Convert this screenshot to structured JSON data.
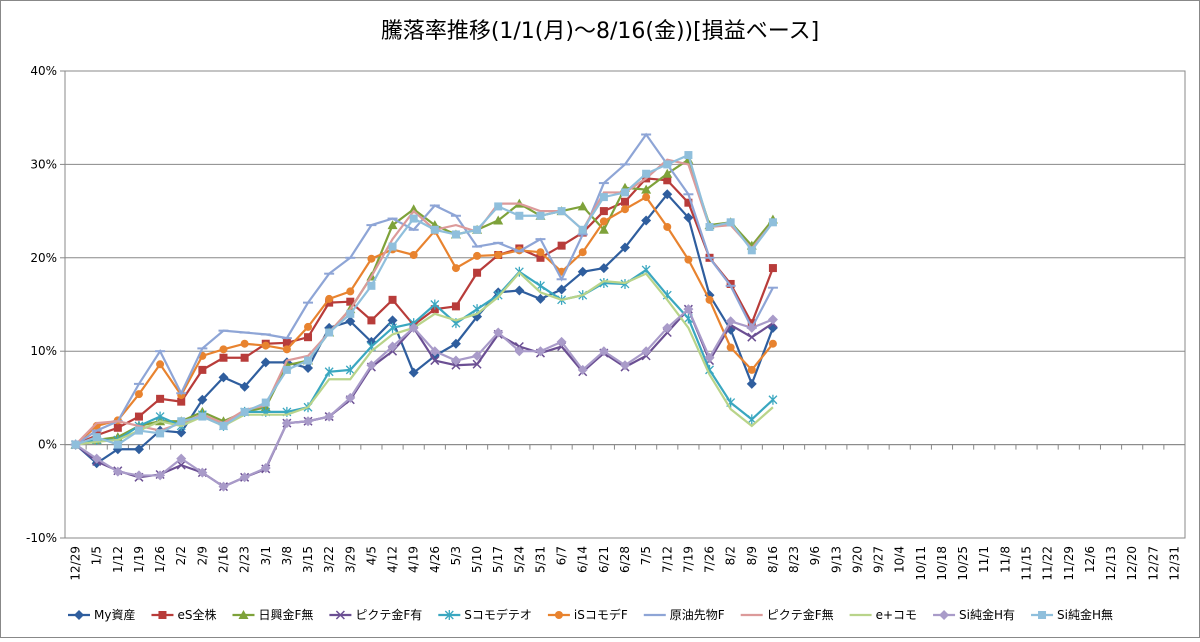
{
  "chart_data": {
    "type": "line",
    "title": "騰落率推移(1/1(月)～8/16(金))[損益ベース]",
    "categories": [
      "12/29",
      "1/5",
      "1/12",
      "1/19",
      "1/26",
      "2/2",
      "2/9",
      "2/16",
      "2/23",
      "3/1",
      "3/8",
      "3/15",
      "3/22",
      "3/29",
      "4/5",
      "4/12",
      "4/19",
      "4/26",
      "5/3",
      "5/10",
      "5/17",
      "5/24",
      "5/31",
      "6/7",
      "6/14",
      "6/21",
      "6/28",
      "7/5",
      "7/12",
      "7/19",
      "7/26",
      "8/2",
      "8/9",
      "8/16",
      "8/23",
      "9/6",
      "9/13",
      "9/20",
      "9/27",
      "10/4",
      "10/11",
      "10/18",
      "10/25",
      "11/1",
      "11/8",
      "11/15",
      "11/22",
      "11/29",
      "12/6",
      "12/13",
      "12/20",
      "12/27",
      "12/31"
    ],
    "ylim": [
      -10,
      40
    ],
    "yticks": [
      {
        "value": -10,
        "label": "-10%"
      },
      {
        "value": 0,
        "label": "0%"
      },
      {
        "value": 10,
        "label": "10%"
      },
      {
        "value": 20,
        "label": "20%"
      },
      {
        "value": 30,
        "label": "30%"
      },
      {
        "value": 40,
        "label": "40%"
      }
    ],
    "grid": true,
    "legend": "bottom",
    "series": [
      {
        "name": "My資産",
        "color": "#2f5e9e",
        "marker": "diamond",
        "values": [
          0,
          -2.0,
          -0.5,
          -0.5,
          1.5,
          1.3,
          4.8,
          7.2,
          6.2,
          8.8,
          8.8,
          8.2,
          12.5,
          13.2,
          11.0,
          13.3,
          7.7,
          9.5,
          10.8,
          13.7,
          16.3,
          16.5,
          15.6,
          16.6,
          18.5,
          18.9,
          21.1,
          24.0,
          26.8,
          24.3,
          16.0,
          12.3,
          6.5,
          12.5,
          null,
          null,
          null,
          null,
          null,
          null,
          null,
          null,
          null,
          null,
          null,
          null,
          null,
          null,
          null,
          null,
          null,
          null,
          null
        ]
      },
      {
        "name": "eS全株",
        "color": "#b83c3a",
        "marker": "square",
        "values": [
          0,
          1.0,
          1.8,
          3.0,
          4.9,
          4.6,
          8.0,
          9.3,
          9.3,
          10.8,
          10.9,
          11.5,
          15.2,
          15.3,
          13.3,
          15.5,
          12.8,
          14.5,
          14.8,
          18.4,
          20.3,
          21.0,
          20.0,
          21.3,
          22.7,
          25.0,
          26.0,
          28.5,
          28.3,
          25.9,
          20.0,
          17.2,
          13.0,
          18.9,
          null,
          null,
          null,
          null,
          null,
          null,
          null,
          null,
          null,
          null,
          null,
          null,
          null,
          null,
          null,
          null,
          null,
          null,
          null
        ]
      },
      {
        "name": "日興金F無",
        "color": "#7ea23a",
        "marker": "triangle",
        "values": [
          0,
          0.5,
          0.8,
          2.0,
          2.5,
          2.5,
          3.5,
          2.5,
          3.5,
          4.0,
          8.5,
          9.0,
          12.0,
          14.5,
          18.0,
          23.5,
          25.2,
          23.5,
          22.5,
          23.0,
          24.0,
          25.8,
          24.5,
          25.0,
          25.5,
          23.0,
          27.5,
          27.3,
          29.0,
          30.5,
          23.5,
          23.8,
          21.3,
          24.1,
          null,
          null,
          null,
          null,
          null,
          null,
          null,
          null,
          null,
          null,
          null,
          null,
          null,
          null,
          null,
          null,
          null,
          null,
          null
        ]
      },
      {
        "name": "ピクテ金F有",
        "color": "#6b4f93",
        "marker": "x",
        "values": [
          0,
          -1.8,
          -2.8,
          -3.5,
          -3.2,
          -2.2,
          -3.0,
          -4.5,
          -3.5,
          -2.6,
          2.3,
          2.5,
          3.0,
          4.8,
          8.3,
          10.0,
          12.5,
          9.0,
          8.5,
          8.6,
          11.8,
          10.5,
          9.8,
          10.5,
          7.8,
          9.8,
          8.3,
          9.5,
          12.0,
          14.5,
          9.0,
          12.8,
          11.5,
          13.0,
          null,
          null,
          null,
          null,
          null,
          null,
          null,
          null,
          null,
          null,
          null,
          null,
          null,
          null,
          null,
          null,
          null,
          null,
          null
        ]
      },
      {
        "name": "Sコモデテオ",
        "color": "#3aa7c0",
        "marker": "asterisk",
        "values": [
          0,
          0.5,
          0.5,
          2.0,
          3.0,
          2.0,
          3.2,
          2.0,
          3.5,
          3.5,
          3.5,
          4.0,
          7.8,
          8.0,
          10.5,
          12.5,
          13.0,
          15.0,
          13.0,
          14.5,
          16.0,
          18.5,
          17.0,
          15.5,
          16.0,
          17.3,
          17.2,
          18.7,
          16.0,
          13.5,
          8.0,
          4.5,
          2.7,
          4.8,
          null,
          null,
          null,
          null,
          null,
          null,
          null,
          null,
          null,
          null,
          null,
          null,
          null,
          null,
          null,
          null,
          null,
          null,
          null
        ]
      },
      {
        "name": "iSコモデF",
        "color": "#e8832f",
        "marker": "circle",
        "values": [
          0,
          2.0,
          2.6,
          5.4,
          8.6,
          5.3,
          9.5,
          10.2,
          10.8,
          10.6,
          10.2,
          12.6,
          15.6,
          16.4,
          19.9,
          20.9,
          20.3,
          22.9,
          18.9,
          20.2,
          20.3,
          20.8,
          20.6,
          18.5,
          20.6,
          23.9,
          25.2,
          26.5,
          23.3,
          19.8,
          15.5,
          10.4,
          8.0,
          10.8,
          null,
          null,
          null,
          null,
          null,
          null,
          null,
          null,
          null,
          null,
          null,
          null,
          null,
          null,
          null,
          null,
          null,
          null,
          null
        ]
      },
      {
        "name": "原油先物F",
        "color": "#8ea5d6",
        "marker": "dash",
        "values": [
          0,
          1.5,
          2.5,
          6.5,
          10.0,
          5.5,
          10.3,
          12.2,
          12.0,
          11.8,
          11.4,
          15.2,
          18.3,
          20.0,
          23.5,
          24.2,
          23.0,
          25.6,
          24.5,
          21.2,
          21.6,
          20.7,
          22.0,
          17.7,
          22.5,
          28.0,
          30.0,
          33.2,
          30.0,
          26.8,
          20.0,
          17.0,
          12.5,
          16.8,
          null,
          null,
          null,
          null,
          null,
          null,
          null,
          null,
          null,
          null,
          null,
          null,
          null,
          null,
          null,
          null,
          null,
          null,
          null
        ]
      },
      {
        "name": "ピクテ金F無",
        "color": "#dc9a9a",
        "marker": "none",
        "values": [
          0,
          2.3,
          2.5,
          2.0,
          1.5,
          2.3,
          3.2,
          2.3,
          3.7,
          4.2,
          9.0,
          9.5,
          12.0,
          14.5,
          18.0,
          22.0,
          25.0,
          23.0,
          23.5,
          22.8,
          25.8,
          25.8,
          25.0,
          25.0,
          23.0,
          27.0,
          27.0,
          28.5,
          30.5,
          30.0,
          23.3,
          23.5,
          21.0,
          23.8,
          null,
          null,
          null,
          null,
          null,
          null,
          null,
          null,
          null,
          null,
          null,
          null,
          null,
          null,
          null,
          null,
          null,
          null,
          null
        ]
      },
      {
        "name": "e+コモ",
        "color": "#b9d48a",
        "marker": "none",
        "values": [
          0,
          0.3,
          0.5,
          1.5,
          2.5,
          2.0,
          3.0,
          2.0,
          3.2,
          3.2,
          3.2,
          4.0,
          7.0,
          7.0,
          10.0,
          11.8,
          12.5,
          14.0,
          13.3,
          14.0,
          15.8,
          18.4,
          16.3,
          15.5,
          16.0,
          17.5,
          17.3,
          18.3,
          15.5,
          12.5,
          7.5,
          3.8,
          2.0,
          4.0,
          null,
          null,
          null,
          null,
          null,
          null,
          null,
          null,
          null,
          null,
          null,
          null,
          null,
          null,
          null,
          null,
          null,
          null,
          null
        ]
      },
      {
        "name": "Si純金H有",
        "color": "#a99bc9",
        "marker": "diamond",
        "values": [
          0,
          -1.5,
          -2.9,
          -3.3,
          -3.3,
          -1.5,
          -3.0,
          -4.5,
          -3.5,
          -2.5,
          2.3,
          2.5,
          3.0,
          5.0,
          8.5,
          10.5,
          12.5,
          10.0,
          9.0,
          9.5,
          12.0,
          10.0,
          10.0,
          11.0,
          8.0,
          10.0,
          8.5,
          10.0,
          12.5,
          14.5,
          9.3,
          13.2,
          12.5,
          13.4,
          null,
          null,
          null,
          null,
          null,
          null,
          null,
          null,
          null,
          null,
          null,
          null,
          null,
          null,
          null,
          null,
          null,
          null,
          null
        ]
      },
      {
        "name": "Si純金H無",
        "color": "#8fbfdc",
        "marker": "square",
        "values": [
          0,
          0.8,
          0,
          1.5,
          1.2,
          2.5,
          3.0,
          2.0,
          3.5,
          4.5,
          8.0,
          9.0,
          12.0,
          14.0,
          17.0,
          21.2,
          24.2,
          23.0,
          22.5,
          23.0,
          25.5,
          24.5,
          24.5,
          25.0,
          23.0,
          26.5,
          27.0,
          29.0,
          30.0,
          31.0,
          23.3,
          23.8,
          20.8,
          23.8,
          null,
          null,
          null,
          null,
          null,
          null,
          null,
          null,
          null,
          null,
          null,
          null,
          null,
          null,
          null,
          null,
          null,
          null,
          null
        ]
      }
    ]
  }
}
